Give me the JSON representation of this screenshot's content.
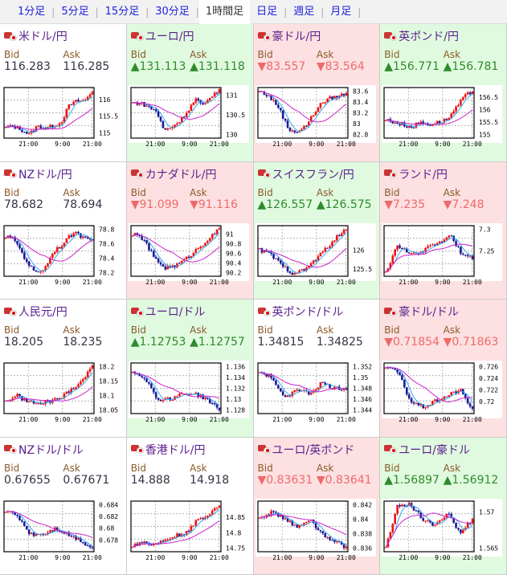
{
  "tabs": [
    "1分足",
    "5分足",
    "15分足",
    "30分足",
    "1時間足",
    "日足",
    "週足",
    "月足"
  ],
  "active_tab": "1時間足",
  "labels": {
    "bid": "Bid",
    "ask": "Ask"
  },
  "time_labels": [
    "21:00",
    "9:00",
    "21:00"
  ],
  "colors": {
    "up_candle": "#ee1111",
    "down_candle": "#1a1a99",
    "ma_short": "#33aaee",
    "ma_long": "#cc22cc"
  },
  "panels": [
    {
      "name": "米ドル/円",
      "dir": "none",
      "bid": "116.283",
      "ask": "116.285",
      "ticks": [
        "116",
        "115.5",
        "115"
      ],
      "closes": [
        115.15,
        115.2,
        115.1,
        114.95,
        115.2,
        115.15,
        115.2,
        115.3,
        115.8,
        115.95,
        115.95,
        116.25
      ]
    },
    {
      "name": "ユーロ/円",
      "dir": "up",
      "bid": "▲131.113",
      "ask": "▲131.118",
      "ticks": [
        "131",
        "130.5",
        "130"
      ],
      "closes": [
        130.8,
        130.8,
        130.7,
        130.6,
        130.1,
        130.2,
        130.35,
        130.6,
        130.9,
        130.7,
        131,
        131.1
      ]
    },
    {
      "name": "豪ドル/円",
      "dir": "down",
      "bid": "▼83.557",
      "ask": "▼83.564",
      "ticks": [
        "83.6",
        "83.4",
        "83.2",
        "83",
        "82.8"
      ],
      "closes": [
        83.6,
        83.5,
        83.3,
        82.9,
        82.85,
        83.0,
        83.3,
        83.45,
        83.5,
        83.55
      ]
    },
    {
      "name": "英ポンド/円",
      "dir": "up",
      "bid": "▲156.771",
      "ask": "▲156.781",
      "ticks": [
        "156.5",
        "156",
        "155.5",
        "155"
      ],
      "closes": [
        155.6,
        155.5,
        155.4,
        155.3,
        155.5,
        155.4,
        155.5,
        155.6,
        156,
        156.5,
        156.75
      ]
    },
    {
      "name": "NZドル/円",
      "dir": "none",
      "bid": "78.682",
      "ask": "78.694",
      "ticks": [
        "78.8",
        "78.6",
        "78.4",
        "78.2"
      ],
      "closes": [
        78.7,
        78.65,
        78.4,
        78.2,
        78.25,
        78.5,
        78.6,
        78.75,
        78.7,
        78.68
      ]
    },
    {
      "name": "カナダドル/円",
      "dir": "down",
      "bid": "▼91.099",
      "ask": "▼91.116",
      "ticks": [
        "91",
        "90.8",
        "90.6",
        "90.4",
        "90.2"
      ],
      "closes": [
        91,
        90.9,
        90.5,
        90.3,
        90.35,
        90.5,
        90.7,
        90.9,
        91.1
      ]
    },
    {
      "name": "スイスフラン/円",
      "dir": "up",
      "bid": "▲126.557",
      "ask": "▲126.575",
      "ticks": [
        "126",
        "125.5"
      ],
      "closes": [
        126,
        125.9,
        125.6,
        125.4,
        125.45,
        125.7,
        126,
        126.3,
        126.55
      ]
    },
    {
      "name": "ランド/円",
      "dir": "down",
      "bid": "▼7.235",
      "ask": "▼7.248",
      "ticks": [
        "7.3",
        "7.25"
      ],
      "closes": [
        7.2,
        7.26,
        7.25,
        7.24,
        7.26,
        7.27,
        7.29,
        7.24,
        7.235
      ]
    },
    {
      "name": "人民元/円",
      "dir": "none",
      "bid": "18.205",
      "ask": "18.235",
      "ticks": [
        "18.2",
        "18.15",
        "18.1",
        "18.05"
      ],
      "closes": [
        18.08,
        18.1,
        18.08,
        18.07,
        18.08,
        18.09,
        18.12,
        18.15,
        18.2
      ]
    },
    {
      "name": "ユーロ/ドル",
      "dir": "up",
      "bid": "▲1.12753",
      "ask": "▲1.12757",
      "ticks": [
        "1.136",
        "1.134",
        "1.132",
        "1.13",
        "1.128"
      ],
      "closes": [
        1.135,
        1.134,
        1.13,
        1.13,
        1.131,
        1.131,
        1.13,
        1.128
      ]
    },
    {
      "name": "英ポンド/ドル",
      "dir": "none",
      "bid": "1.34815",
      "ask": "1.34825",
      "ticks": [
        "1.352",
        "1.35",
        "1.348",
        "1.346",
        "1.344"
      ],
      "closes": [
        1.351,
        1.35,
        1.346,
        1.348,
        1.347,
        1.349,
        1.348,
        1.348
      ]
    },
    {
      "name": "豪ドル/ドル",
      "dir": "down",
      "bid": "▼0.71854",
      "ask": "▼0.71863",
      "ticks": [
        "0.726",
        "0.724",
        "0.722",
        "0.72"
      ],
      "closes": [
        0.726,
        0.725,
        0.72,
        0.719,
        0.72,
        0.721,
        0.722,
        0.7185
      ]
    },
    {
      "name": "NZドル/ドル",
      "dir": "none",
      "bid": "0.67655",
      "ask": "0.67671",
      "ticks": [
        "0.684",
        "0.682",
        "0.68",
        "0.678"
      ],
      "closes": [
        0.683,
        0.682,
        0.679,
        0.679,
        0.68,
        0.679,
        0.678,
        0.6766
      ]
    },
    {
      "name": "香港ドル/円",
      "dir": "none",
      "bid": "14.888",
      "ask": "14.918",
      "ticks": [
        "14.85",
        "14.8",
        "14.75"
      ],
      "closes": [
        14.76,
        14.77,
        14.76,
        14.78,
        14.79,
        14.8,
        14.84,
        14.86,
        14.89
      ]
    },
    {
      "name": "ユーロ/英ポンド",
      "dir": "down",
      "bid": "▼0.83631",
      "ask": "▼0.83641",
      "ticks": [
        "0.842",
        "0.84",
        "0.838",
        "0.836"
      ],
      "closes": [
        0.84,
        0.841,
        0.84,
        0.839,
        0.84,
        0.838,
        0.837,
        0.836
      ]
    },
    {
      "name": "ユーロ/豪ドル",
      "dir": "up",
      "bid": "▲1.56897",
      "ask": "▲1.56912",
      "ticks": [
        "1.57",
        "1.565"
      ],
      "closes": [
        1.565,
        1.571,
        1.571,
        1.569,
        1.568,
        1.57,
        1.567,
        1.569
      ]
    }
  ]
}
